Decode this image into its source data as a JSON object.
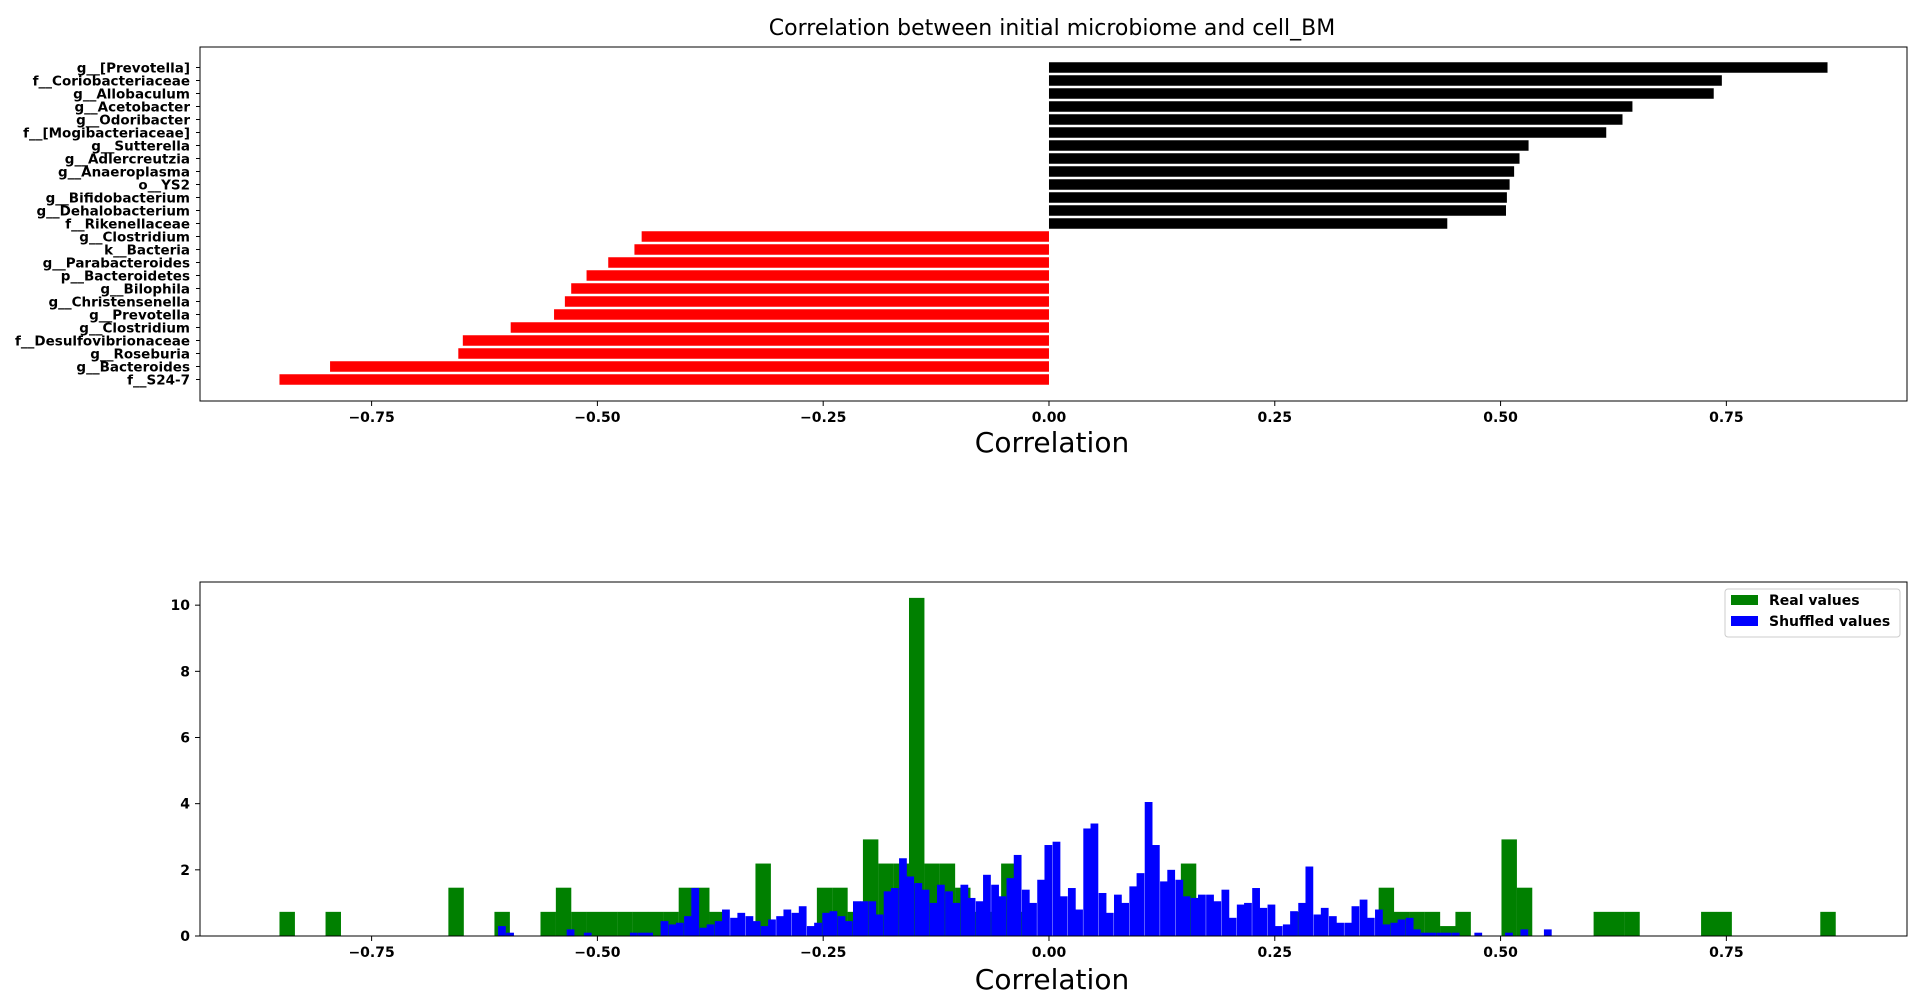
{
  "chart_data": [
    {
      "type": "bar",
      "orientation": "horizontal",
      "title": "Correlation between initial microbiome and cell_BM",
      "xlabel": "Correlation",
      "ylabel": "",
      "xlim": [
        -0.94,
        0.95
      ],
      "xticks": [
        "−0.75",
        "−0.50",
        "−0.25",
        "0.00",
        "0.25",
        "0.50",
        "0.75"
      ],
      "xtick_values": [
        -0.75,
        -0.5,
        -0.25,
        0,
        0.25,
        0.5,
        0.75
      ],
      "grid": false,
      "positive_color": "#000000",
      "negative_color": "#ff0000",
      "categories": [
        "g__[Prevotella]",
        "f__Coriobacteriaceae",
        "g__Allobaculum",
        "g__Acetobacter",
        "g__Odoribacter",
        "f__[Mogibacteriaceae]",
        "g__Sutterella",
        "g__Adlercreutzia",
        "g__Anaeroplasma",
        "o__YS2",
        "g__Bifidobacterium",
        "g__Dehalobacterium",
        "f__Rikenellaceae",
        "g__Clostridium",
        "k__Bacteria",
        "g__Parabacteroides",
        "p__Bacteroidetes",
        "g__Bilophila",
        "g__Christensenella",
        "g__Prevotella",
        "g__Clostridium",
        "f__Desulfovibrionaceae",
        "g__Roseburia",
        "g__Bacteroides",
        "f__S24-7"
      ],
      "values": [
        0.862,
        0.745,
        0.736,
        0.646,
        0.635,
        0.617,
        0.531,
        0.521,
        0.515,
        0.51,
        0.507,
        0.506,
        0.441,
        -0.451,
        -0.459,
        -0.488,
        -0.512,
        -0.529,
        -0.536,
        -0.548,
        -0.596,
        -0.649,
        -0.654,
        -0.796,
        -0.852
      ]
    },
    {
      "type": "bar",
      "subtype": "histogram",
      "title": "",
      "xlabel": "Correlation",
      "ylabel": "",
      "xlim": [
        -0.94,
        0.95
      ],
      "ylim": [
        0,
        10.7
      ],
      "xticks": [
        "−0.75",
        "−0.50",
        "−0.25",
        "0.00",
        "0.25",
        "0.50",
        "0.75"
      ],
      "xtick_values": [
        -0.75,
        -0.5,
        -0.25,
        0,
        0.25,
        0.5,
        0.75
      ],
      "yticks": [
        "0",
        "2",
        "4",
        "6",
        "8",
        "10"
      ],
      "ytick_values": [
        0,
        2,
        4,
        6,
        8,
        10
      ],
      "legend_position": "top-right",
      "series": [
        {
          "name": "Real values",
          "color": "#008000",
          "bin_width": 0.0171,
          "bin_starts": [
            -0.852,
            -0.801,
            -0.665,
            -0.614,
            -0.563,
            -0.546,
            -0.529,
            -0.512,
            -0.495,
            -0.478,
            -0.461,
            -0.444,
            -0.427,
            -0.41,
            -0.393,
            -0.376,
            -0.325,
            -0.257,
            -0.24,
            -0.223,
            -0.206,
            -0.189,
            -0.172,
            -0.155,
            -0.138,
            -0.121,
            -0.104,
            -0.087,
            -0.07,
            -0.053,
            -0.046,
            0.146,
            0.275,
            0.365,
            0.382,
            0.399,
            0.416,
            0.433,
            0.45,
            0.501,
            0.518,
            0.603,
            0.62,
            0.637,
            0.722,
            0.739,
            0.854
          ],
          "values": [
            0.73,
            0.73,
            1.46,
            0.73,
            0.73,
            1.46,
            0.73,
            0.73,
            0.73,
            0.73,
            0.73,
            0.73,
            0.73,
            1.46,
            1.46,
            0.73,
            2.19,
            1.46,
            1.46,
            0.73,
            2.92,
            2.19,
            2.19,
            10.22,
            2.19,
            2.19,
            1.46,
            0.73,
            0.73,
            2.19,
            0.73,
            2.19,
            0.73,
            1.46,
            0.73,
            0.73,
            0.73,
            0.3,
            0.73,
            2.92,
            1.46,
            0.73,
            0.73,
            0.73,
            0.73,
            0.73,
            0.73
          ]
        },
        {
          "name": "Shuffled values",
          "color": "#0000ff",
          "bin_width": 0.0086,
          "bin_starts": [
            -0.61,
            -0.601,
            -0.534,
            -0.515,
            -0.464,
            -0.455,
            -0.447,
            -0.43,
            -0.421,
            -0.413,
            -0.404,
            -0.396,
            -0.387,
            -0.379,
            -0.37,
            -0.362,
            -0.353,
            -0.345,
            -0.336,
            -0.328,
            -0.319,
            -0.311,
            -0.302,
            -0.294,
            -0.285,
            -0.277,
            -0.268,
            -0.26,
            -0.251,
            -0.243,
            -0.234,
            -0.226,
            -0.217,
            -0.209,
            -0.2,
            -0.192,
            -0.183,
            -0.175,
            -0.166,
            -0.158,
            -0.149,
            -0.141,
            -0.132,
            -0.124,
            -0.115,
            -0.107,
            -0.098,
            -0.09,
            -0.081,
            -0.073,
            -0.064,
            -0.056,
            -0.047,
            -0.039,
            -0.03,
            -0.022,
            -0.013,
            -0.005,
            0.004,
            0.012,
            0.021,
            0.029,
            0.038,
            0.046,
            0.055,
            0.063,
            0.072,
            0.08,
            0.089,
            0.097,
            0.106,
            0.114,
            0.123,
            0.131,
            0.14,
            0.148,
            0.157,
            0.165,
            0.174,
            0.182,
            0.191,
            0.199,
            0.208,
            0.216,
            0.225,
            0.233,
            0.242,
            0.25,
            0.259,
            0.267,
            0.276,
            0.284,
            0.293,
            0.301,
            0.31,
            0.318,
            0.327,
            0.335,
            0.344,
            0.352,
            0.361,
            0.369,
            0.378,
            0.386,
            0.395,
            0.403,
            0.412,
            0.42,
            0.429,
            0.437,
            0.446,
            0.471,
            0.505,
            0.522,
            0.548
          ],
          "values": [
            0.3,
            0.1,
            0.2,
            0.1,
            0.1,
            0.1,
            0.1,
            0.45,
            0.35,
            0.4,
            0.6,
            1.45,
            0.25,
            0.35,
            0.45,
            0.8,
            0.55,
            0.7,
            0.6,
            0.45,
            0.3,
            0.5,
            0.6,
            0.8,
            0.7,
            0.9,
            0.3,
            0.4,
            0.7,
            0.75,
            0.6,
            0.45,
            1.05,
            1.05,
            1.05,
            0.65,
            1.35,
            1.45,
            2.35,
            1.8,
            1.6,
            1.4,
            1.0,
            1.55,
            1.35,
            1.0,
            1.55,
            1.15,
            1.05,
            1.85,
            1.55,
            1.2,
            1.75,
            2.45,
            1.4,
            1.0,
            1.7,
            2.75,
            2.85,
            1.2,
            1.45,
            0.8,
            3.25,
            3.4,
            1.3,
            0.7,
            1.25,
            1.0,
            1.5,
            1.9,
            4.05,
            2.75,
            1.65,
            2.0,
            1.7,
            1.2,
            1.15,
            1.25,
            1.25,
            1.05,
            1.4,
            0.55,
            0.95,
            1.0,
            1.45,
            0.85,
            0.95,
            0.3,
            0.35,
            0.75,
            1.0,
            2.1,
            0.65,
            0.85,
            0.6,
            0.4,
            0.4,
            0.9,
            1.1,
            0.55,
            0.8,
            0.35,
            0.4,
            0.5,
            0.55,
            0.2,
            0.1,
            0.1,
            0.1,
            0.1,
            0.1,
            0.1,
            0.1,
            0.2,
            0.2
          ]
        }
      ]
    }
  ]
}
